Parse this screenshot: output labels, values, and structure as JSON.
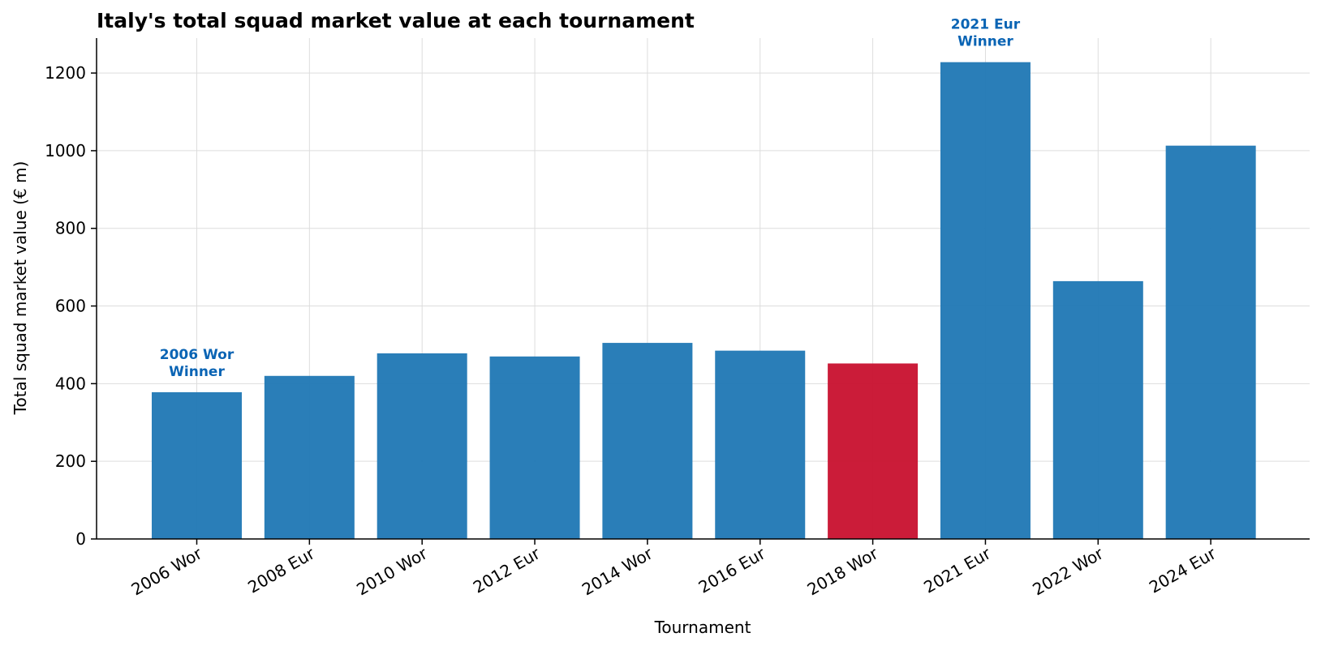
{
  "chart_data": {
    "type": "bar",
    "title": "Italy's total squad market value at each tournament",
    "xlabel": "Tournament",
    "ylabel": "Total squad market value (€ m)",
    "categories": [
      "2006 Wor",
      "2008 Eur",
      "2010 Wor",
      "2012 Eur",
      "2014 Wor",
      "2016 Eur",
      "2018 Wor",
      "2021 Eur",
      "2022 Wor",
      "2024 Eur"
    ],
    "values": [
      378,
      420,
      478,
      470,
      505,
      485,
      452,
      1228,
      664,
      1013
    ],
    "bar_colors": [
      "#1f77b4",
      "#1f77b4",
      "#1f77b4",
      "#1f77b4",
      "#1f77b4",
      "#1f77b4",
      "#c8102e",
      "#1f77b4",
      "#1f77b4",
      "#1f77b4"
    ],
    "ylim": [
      0,
      1290
    ],
    "yticks": [
      0,
      200,
      400,
      600,
      800,
      1000,
      1200
    ],
    "grid": true,
    "annotations": [
      {
        "index": 0,
        "lines": [
          "2006 Wor",
          "Winner"
        ]
      },
      {
        "index": 7,
        "lines": [
          "2021 Eur",
          "Winner"
        ]
      }
    ],
    "annotation_color": "#0a64b4"
  }
}
